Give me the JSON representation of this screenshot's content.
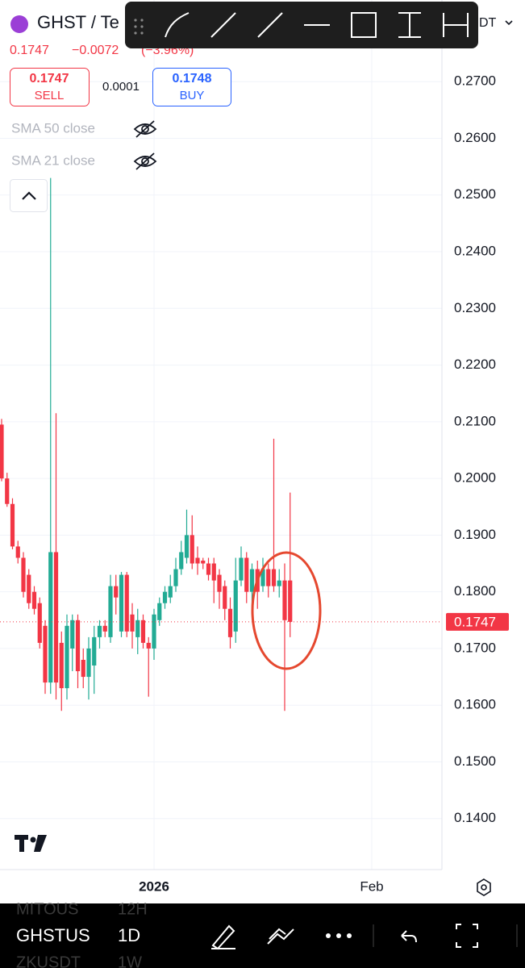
{
  "header": {
    "symbol": "GHST / Te",
    "price": "0.1747",
    "change": "−0.0072",
    "change_pct": "(−3.96%)",
    "currency": "DT"
  },
  "trade": {
    "sell_price": "0.1747",
    "sell": "SELL",
    "spread": "0.0001",
    "buy_price": "0.1748",
    "buy": "BUY"
  },
  "indicators": [
    "SMA 50 close",
    "SMA 21 close"
  ],
  "chart_data": {
    "type": "candlestick",
    "up_color": "#22ab94",
    "down_color": "#f23645",
    "ylim": [
      0.131,
      0.2844
    ],
    "yticks": [
      {
        "value": 0.27,
        "label": "0.2700"
      },
      {
        "value": 0.26,
        "label": "0.2600"
      },
      {
        "value": 0.25,
        "label": "0.2500"
      },
      {
        "value": 0.24,
        "label": "0.2400"
      },
      {
        "value": 0.23,
        "label": "0.2300"
      },
      {
        "value": 0.22,
        "label": "0.2200"
      },
      {
        "value": 0.21,
        "label": "0.2100"
      },
      {
        "value": 0.2,
        "label": "0.2000"
      },
      {
        "value": 0.19,
        "label": "0.1900"
      },
      {
        "value": 0.18,
        "label": "0.1800"
      },
      {
        "value": 0.17,
        "label": "0.1700"
      },
      {
        "value": 0.16,
        "label": "0.1600"
      },
      {
        "value": 0.15,
        "label": "0.1500"
      },
      {
        "value": 0.14,
        "label": "0.1400"
      }
    ],
    "xticks": [
      {
        "value": 28,
        "label": "2026"
      },
      {
        "value": 68,
        "label": "Feb"
      }
    ],
    "grid": true,
    "last_price": {
      "value": 0.1747,
      "label": "0.1747"
    },
    "ohlc": [
      [
        0.2095,
        0.2105,
        0.1995,
        0.2
      ],
      [
        0.2,
        0.201,
        0.195,
        0.1955
      ],
      [
        0.1955,
        0.1965,
        0.1875,
        0.188
      ],
      [
        0.188,
        0.189,
        0.185,
        0.186
      ],
      [
        0.186,
        0.187,
        0.179,
        0.18
      ],
      [
        0.183,
        0.184,
        0.177,
        0.178
      ],
      [
        0.18,
        0.181,
        0.176,
        0.177
      ],
      [
        0.178,
        0.179,
        0.17,
        0.171
      ],
      [
        0.174,
        0.175,
        0.162,
        0.164
      ],
      [
        0.164,
        0.253,
        0.162,
        0.187
      ],
      [
        0.187,
        0.2115,
        0.161,
        0.164
      ],
      [
        0.171,
        0.173,
        0.159,
        0.163
      ],
      [
        0.163,
        0.176,
        0.161,
        0.174
      ],
      [
        0.17,
        0.176,
        0.166,
        0.175
      ],
      [
        0.175,
        0.176,
        0.163,
        0.166
      ],
      [
        0.168,
        0.17,
        0.163,
        0.165
      ],
      [
        0.165,
        0.172,
        0.161,
        0.17
      ],
      [
        0.167,
        0.174,
        0.162,
        0.172
      ],
      [
        0.172,
        0.175,
        0.17,
        0.174
      ],
      [
        0.174,
        0.175,
        0.172,
        0.173
      ],
      [
        0.172,
        0.183,
        0.171,
        0.181
      ],
      [
        0.181,
        0.183,
        0.176,
        0.179
      ],
      [
        0.173,
        0.1835,
        0.172,
        0.183
      ],
      [
        0.183,
        0.1835,
        0.172,
        0.173
      ],
      [
        0.176,
        0.178,
        0.17,
        0.173
      ],
      [
        0.172,
        0.177,
        0.169,
        0.175
      ],
      [
        0.175,
        0.176,
        0.17,
        0.171
      ],
      [
        0.171,
        0.172,
        0.1615,
        0.17
      ],
      [
        0.17,
        0.177,
        0.168,
        0.176
      ],
      [
        0.175,
        0.179,
        0.174,
        0.178
      ],
      [
        0.178,
        0.181,
        0.177,
        0.18
      ],
      [
        0.179,
        0.183,
        0.178,
        0.181
      ],
      [
        0.181,
        0.186,
        0.18,
        0.184
      ],
      [
        0.184,
        0.189,
        0.183,
        0.187
      ],
      [
        0.186,
        0.1945,
        0.185,
        0.19
      ],
      [
        0.19,
        0.1935,
        0.184,
        0.185
      ],
      [
        0.186,
        0.188,
        0.183,
        0.185
      ],
      [
        0.1855,
        0.186,
        0.184,
        0.185
      ],
      [
        0.185,
        0.186,
        0.182,
        0.183
      ],
      [
        0.185,
        0.186,
        0.178,
        0.182
      ],
      [
        0.183,
        0.184,
        0.177,
        0.18
      ],
      [
        0.181,
        0.182,
        0.175,
        0.177
      ],
      [
        0.177,
        0.179,
        0.17,
        0.172
      ],
      [
        0.173,
        0.186,
        0.171,
        0.182
      ],
      [
        0.182,
        0.188,
        0.181,
        0.186
      ],
      [
        0.186,
        0.187,
        0.178,
        0.18
      ],
      [
        0.18,
        0.185,
        0.176,
        0.184
      ],
      [
        0.184,
        0.1855,
        0.177,
        0.18
      ],
      [
        0.181,
        0.186,
        0.18,
        0.184
      ],
      [
        0.184,
        0.185,
        0.179,
        0.181
      ],
      [
        0.184,
        0.207,
        0.18,
        0.181
      ],
      [
        0.181,
        0.184,
        0.179,
        0.182
      ],
      [
        0.182,
        0.185,
        0.159,
        0.175
      ],
      [
        0.182,
        0.1975,
        0.172,
        0.1747
      ]
    ]
  },
  "footer": {
    "symbol": "GHSTUS",
    "interval": "1D",
    "prev_symbol": "MITOUS",
    "prev_interval": "12H",
    "next_symbol": "ZKUSDT",
    "next_interval": "1W"
  }
}
